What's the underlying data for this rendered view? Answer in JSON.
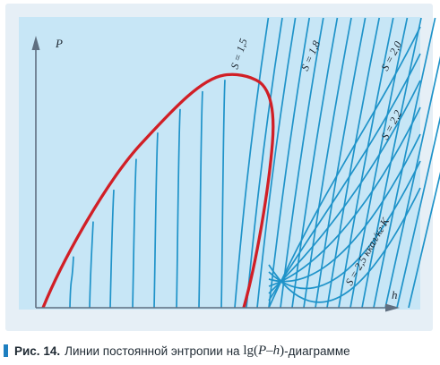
{
  "diagram": {
    "axis_y_label": "P",
    "axis_x_label": "h",
    "curve_labels": [
      "S = 1,5",
      "S = 1,8",
      "S = 2,0",
      "S = 2,2",
      "S = 2,5 ккал/кг·К"
    ],
    "colors": {
      "panel_bg": "#e6eff6",
      "plot_bg": "#c7e6f6",
      "isentrope": "#1f93c9",
      "saturation_curve": "#d11f26",
      "axes": "#5f6f80"
    }
  },
  "caption": {
    "label": "Рис. 14.",
    "text_before": "Линии постоянной энтропии на",
    "formula_prefix": "lg(",
    "formula_P": "P",
    "formula_dash": "–",
    "formula_h": "h",
    "formula_suffix": ")",
    "text_after": "-диаграмме"
  }
}
